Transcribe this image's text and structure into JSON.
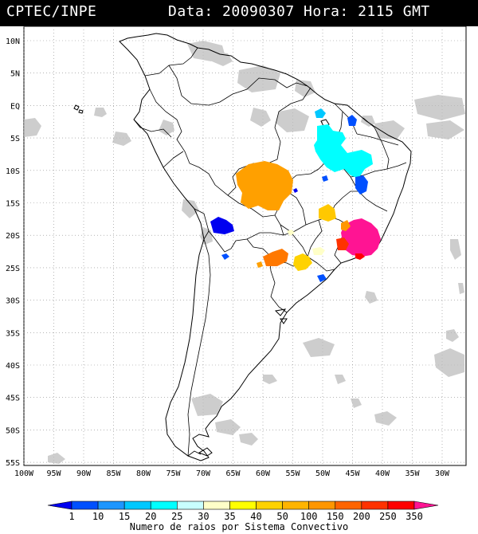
{
  "header": {
    "source": "CPTEC/INPE",
    "datetime": "Data: 20090307 Hora: 2115 GMT"
  },
  "map": {
    "lat_labels": [
      "10N",
      "5N",
      "EQ",
      "5S",
      "10S",
      "15S",
      "20S",
      "25S",
      "30S",
      "35S",
      "40S",
      "45S",
      "50S",
      "55S"
    ],
    "lon_labels": [
      "100W",
      "95W",
      "90W",
      "85W",
      "80W",
      "75W",
      "70W",
      "65W",
      "60W",
      "55W",
      "50W",
      "45W",
      "40W",
      "35W",
      "30W"
    ],
    "grid": "dotted"
  },
  "legend": {
    "levels": [
      "1",
      "10",
      "15",
      "20",
      "25",
      "30",
      "35",
      "40",
      "50",
      "100",
      "150",
      "200",
      "250",
      "350"
    ],
    "colors": [
      "#0000f0",
      "#0050ff",
      "#1e96ff",
      "#00c8ff",
      "#00ffff",
      "#c8ffff",
      "#ffffc8",
      "#ffff00",
      "#ffd200",
      "#ffb400",
      "#ff9600",
      "#ff6400",
      "#ff3200",
      "#ff0000",
      "#ff1493"
    ],
    "title": "Numero de raios por Sistema Convectivo"
  }
}
